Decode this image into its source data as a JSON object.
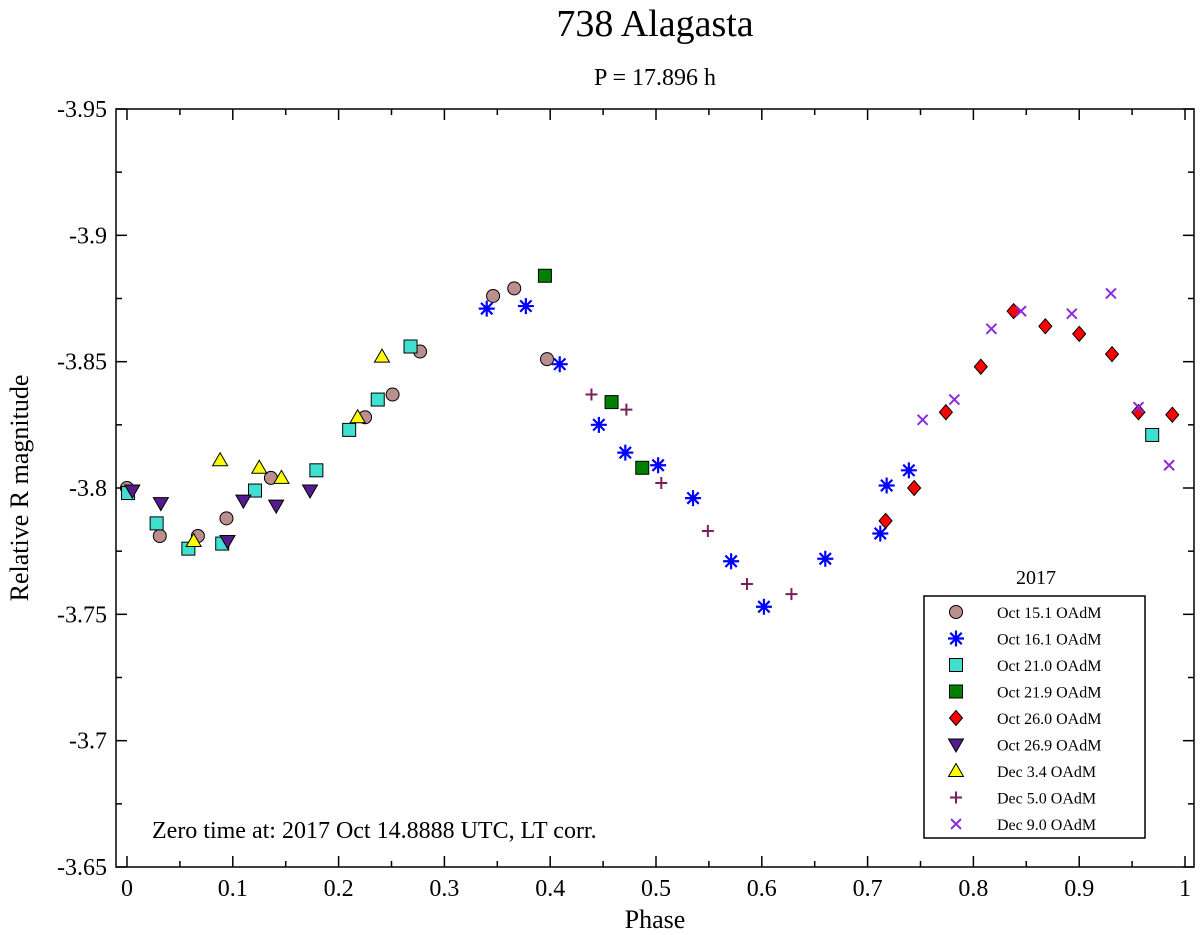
{
  "chart_data": {
    "type": "scatter",
    "title": "738 Alagasta",
    "subtitle": "P = 17.896 h",
    "xlabel": "Phase",
    "ylabel": "Relative R magnitude",
    "xlim": [
      0,
      1
    ],
    "ylim": [
      -3.65,
      -3.95
    ],
    "y_inverted": true,
    "grid": false,
    "x_ticks": [
      0,
      0.1,
      0.2,
      0.3,
      0.4,
      0.5,
      0.6,
      0.7,
      0.8,
      0.9,
      1
    ],
    "x_tick_labels": [
      "0",
      "0.1",
      "0.2",
      "0.3",
      "0.4",
      "0.5",
      "0.6",
      "0.7",
      "0.8",
      "0.9",
      "1"
    ],
    "y_ticks": [
      -3.95,
      -3.9,
      -3.85,
      -3.8,
      -3.75,
      -3.7,
      -3.65
    ],
    "y_tick_labels": [
      "-3.95",
      "-3.9",
      "-3.85",
      "-3.8",
      "-3.75",
      "-3.7",
      "-3.65"
    ],
    "legend_title": "2017",
    "legend_position": "bottom-right",
    "annotation": "Zero time at: 2017 Oct 14.8888 UTC, LT corr.",
    "series": [
      {
        "name": "Oct 15.1 OAdM",
        "marker": "circle",
        "fill": "#bc8f8f",
        "points": [
          [
            0.0,
            -3.8
          ],
          [
            0.031,
            -3.781
          ],
          [
            0.067,
            -3.781
          ],
          [
            0.094,
            -3.788
          ],
          [
            0.136,
            -3.804
          ],
          [
            0.225,
            -3.828
          ],
          [
            0.251,
            -3.837
          ],
          [
            0.277,
            -3.854
          ],
          [
            0.346,
            -3.876
          ],
          [
            0.366,
            -3.879
          ],
          [
            0.397,
            -3.851
          ]
        ]
      },
      {
        "name": "Oct 16.1 OAdM",
        "marker": "asterisk",
        "fill": "#0000ff",
        "points": [
          [
            0.34,
            -3.871
          ],
          [
            0.377,
            -3.872
          ],
          [
            0.409,
            -3.849
          ],
          [
            0.446,
            -3.825
          ],
          [
            0.471,
            -3.814
          ],
          [
            0.502,
            -3.809
          ],
          [
            0.535,
            -3.796
          ],
          [
            0.571,
            -3.771
          ],
          [
            0.602,
            -3.753
          ],
          [
            0.66,
            -3.772
          ],
          [
            0.712,
            -3.782
          ],
          [
            0.718,
            -3.801
          ],
          [
            0.739,
            -3.807
          ]
        ]
      },
      {
        "name": "Oct 21.0 OAdM",
        "marker": "square",
        "fill": "#40e0d0",
        "points": [
          [
            0.001,
            -3.798
          ],
          [
            0.028,
            -3.786
          ],
          [
            0.058,
            -3.776
          ],
          [
            0.09,
            -3.778
          ],
          [
            0.121,
            -3.799
          ],
          [
            0.179,
            -3.807
          ],
          [
            0.21,
            -3.823
          ],
          [
            0.237,
            -3.835
          ],
          [
            0.268,
            -3.856
          ],
          [
            0.969,
            -3.821
          ]
        ]
      },
      {
        "name": "Oct 21.9 OAdM",
        "marker": "square",
        "fill": "#008000",
        "points": [
          [
            0.395,
            -3.884
          ],
          [
            0.458,
            -3.834
          ],
          [
            0.487,
            -3.808
          ]
        ]
      },
      {
        "name": "Oct 26.0 OAdM",
        "marker": "diamond",
        "fill": "#ff0000",
        "points": [
          [
            0.717,
            -3.787
          ],
          [
            0.744,
            -3.8
          ],
          [
            0.774,
            -3.83
          ],
          [
            0.807,
            -3.848
          ],
          [
            0.838,
            -3.87
          ],
          [
            0.868,
            -3.864
          ],
          [
            0.9,
            -3.861
          ],
          [
            0.931,
            -3.853
          ],
          [
            0.956,
            -3.83
          ],
          [
            0.988,
            -3.829
          ]
        ]
      },
      {
        "name": "Oct 26.9 OAdM",
        "marker": "triangle-down",
        "fill": "#551a8b",
        "points": [
          [
            0.005,
            -3.799
          ],
          [
            0.032,
            -3.794
          ],
          [
            0.095,
            -3.779
          ],
          [
            0.11,
            -3.795
          ],
          [
            0.141,
            -3.793
          ],
          [
            0.173,
            -3.799
          ]
        ]
      },
      {
        "name": "Dec 3.4 OAdM",
        "marker": "triangle-up",
        "fill": "#ffff00",
        "points": [
          [
            0.063,
            -3.779
          ],
          [
            0.088,
            -3.811
          ],
          [
            0.125,
            -3.808
          ],
          [
            0.146,
            -3.804
          ],
          [
            0.218,
            -3.828
          ],
          [
            0.241,
            -3.852
          ]
        ]
      },
      {
        "name": "Dec 5.0 OAdM",
        "marker": "plus",
        "fill": "#7a1f5c",
        "points": [
          [
            0.439,
            -3.837
          ],
          [
            0.472,
            -3.831
          ],
          [
            0.505,
            -3.802
          ],
          [
            0.549,
            -3.783
          ],
          [
            0.586,
            -3.762
          ],
          [
            0.628,
            -3.758
          ]
        ]
      },
      {
        "name": "Dec 9.0 OAdM",
        "marker": "x",
        "fill": "#8a2be2",
        "points": [
          [
            0.752,
            -3.827
          ],
          [
            0.782,
            -3.835
          ],
          [
            0.817,
            -3.863
          ],
          [
            0.845,
            -3.87
          ],
          [
            0.893,
            -3.869
          ],
          [
            0.93,
            -3.877
          ],
          [
            0.956,
            -3.832
          ],
          [
            0.985,
            -3.809
          ]
        ]
      }
    ]
  }
}
